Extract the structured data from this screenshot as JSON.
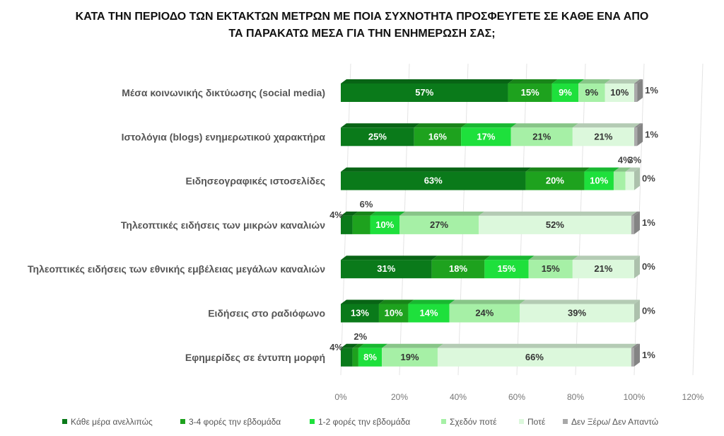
{
  "chart_data": {
    "type": "bar",
    "orientation": "horizontal-stacked",
    "title_lines": [
      "ΚΑΤΑ ΤΗΝ ΠΕΡΙΟΔΟ ΤΩΝ ΕΚΤΑΚΤΩΝ ΜΕΤΡΩΝ ΜΕ ΠΟΙΑ ΣΥΧΝΟΤΗΤΑ ΠΡΟΣΦΕΥΓΕΤΕ ΣΕ ΚΑΘΕ ΕΝΑ ΑΠΟ",
      "ΤΑ ΠΑΡΑΚΑΤΩ ΜΕΣΑ ΓΙΑ ΤΗΝ ΕΝΗΜΕΡΩΣΗ ΣΑΣ;"
    ],
    "categories": [
      "Μέσα κοινωνικής δικτύωσης (social media)",
      "Ιστολόγια (blogs) ενημερωτικού χαρακτήρα",
      "Ειδησεογραφικές ιστοσελίδες",
      "Τηλεοπτικές ειδήσεις των μικρών καναλιών",
      "Τηλεοπτικές ειδήσεις των εθνικής εμβέλειας μεγάλων καναλιών",
      "Ειδήσεις στο ραδιόφωνο",
      "Εφημερίδες σε έντυπη μορφή"
    ],
    "series": [
      {
        "name": "Κάθε μέρα ανελλιπώς",
        "color": "#0a7a1a",
        "values": [
          57,
          25,
          63,
          4,
          31,
          13,
          4
        ]
      },
      {
        "name": "3-4 φορές την εβδομάδα",
        "color": "#1ea21e",
        "values": [
          15,
          16,
          20,
          6,
          18,
          10,
          2
        ]
      },
      {
        "name": "1-2 φορές την εβδομάδα",
        "color": "#1ee03c",
        "values": [
          9,
          17,
          10,
          10,
          15,
          14,
          8
        ]
      },
      {
        "name": "Σχεδόν ποτέ",
        "color": "#a6f0a6",
        "values": [
          9,
          21,
          4,
          27,
          15,
          24,
          19
        ]
      },
      {
        "name": "Ποτέ",
        "color": "#dcf8dc",
        "values": [
          10,
          21,
          3,
          52,
          21,
          39,
          66
        ]
      },
      {
        "name": "Δεν Ξέρω/ Δεν Απαντώ",
        "color": "#a9a9a9",
        "values": [
          1,
          1,
          0,
          1,
          0,
          0,
          1
        ]
      }
    ],
    "value_suffix": "%",
    "xlim": [
      0,
      120
    ],
    "x_ticks": [
      "0%",
      "20%",
      "40%",
      "60%",
      "80%",
      "100%",
      "120%"
    ],
    "legend_position": "bottom",
    "grid": true
  }
}
